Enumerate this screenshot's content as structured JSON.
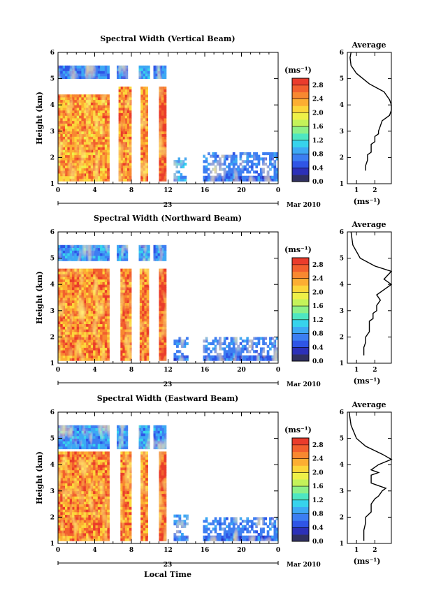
{
  "figure": {
    "xlabel": "Local Time",
    "date_day": "23",
    "date_month": "Mar 2010",
    "ylabel": "Height (km)",
    "avg_title": "Average",
    "avg_xlabel": "(ms⁻¹)",
    "colorbar_unit": "(ms⁻¹)"
  },
  "colorbar": {
    "tick_labels": [
      "0.0",
      "0.4",
      "0.8",
      "1.2",
      "1.6",
      "2.0",
      "2.4",
      "2.8"
    ],
    "tick_values": [
      0.0,
      0.4,
      0.8,
      1.2,
      1.6,
      2.0,
      2.4,
      2.8
    ],
    "range": [
      0.0,
      3.0
    ],
    "colors": [
      "#303060",
      "#2c30b8",
      "#2f55e6",
      "#3c7ef2",
      "#3ea8f4",
      "#37d3ec",
      "#4ee6c2",
      "#8cf08a",
      "#c4f25a",
      "#eef048",
      "#fcd63a",
      "#fcae32",
      "#f88830",
      "#f2602e",
      "#ea3c2c"
    ]
  },
  "chart_data": [
    {
      "type": "heatmap",
      "title": "Spectral Width (Vertical Beam)",
      "x_ticks": [
        "0",
        "4",
        "8",
        "12",
        "16",
        "20",
        "0"
      ],
      "x_tick_values": [
        0,
        4,
        8,
        12,
        16,
        20,
        24
      ],
      "xlim": [
        0,
        24
      ],
      "y_ticks": [
        "1",
        "2",
        "3",
        "4",
        "5",
        "6"
      ],
      "ylim": [
        1,
        6
      ],
      "x_unit": "Local Time (h)",
      "y_unit": "Height (km)",
      "color_unit": "ms⁻¹",
      "value_range": [
        0.0,
        3.0
      ],
      "data_blocks": [
        {
          "t": [
            0,
            5.6
          ],
          "h": [
            5.0,
            5.5
          ],
          "value": 0.7
        },
        {
          "t": [
            0,
            5.6
          ],
          "h": [
            1.1,
            4.4
          ],
          "value": 2.4
        },
        {
          "t": [
            6.4,
            7.6
          ],
          "h": [
            5.0,
            5.5
          ],
          "value": 0.7
        },
        {
          "t": [
            6.6,
            8.0
          ],
          "h": [
            1.1,
            4.7
          ],
          "value": 2.5
        },
        {
          "t": [
            8.8,
            10.0
          ],
          "h": [
            5.0,
            5.5
          ],
          "value": 0.8
        },
        {
          "t": [
            9.0,
            9.8
          ],
          "h": [
            1.1,
            4.7
          ],
          "value": 2.5
        },
        {
          "t": [
            10.4,
            11.8
          ],
          "h": [
            5.0,
            5.5
          ],
          "value": 0.8
        },
        {
          "t": [
            11.0,
            11.8
          ],
          "h": [
            1.1,
            4.7
          ],
          "value": 2.8
        },
        {
          "t": [
            12.6,
            14.0
          ],
          "h": [
            1.1,
            2.0
          ],
          "value": 0.8
        },
        {
          "t": [
            15.8,
            24.0
          ],
          "h": [
            1.1,
            2.2
          ],
          "value": 0.6
        }
      ]
    },
    {
      "type": "line",
      "title": "Average",
      "xlabel": "(ms⁻¹)",
      "x_ticks": [
        "1",
        "2"
      ],
      "x_tick_values": [
        1,
        2
      ],
      "xlim": [
        0.5,
        2.9
      ],
      "y_ticks": [
        "1",
        "2",
        "3",
        "4",
        "5",
        "6"
      ],
      "ylim": [
        1,
        6
      ],
      "x": [
        1.5,
        1.5,
        1.6,
        1.6,
        1.8,
        1.8,
        2.0,
        2.0,
        2.2,
        2.2,
        2.4,
        2.8,
        2.9,
        2.9,
        2.8,
        2.5,
        1.7,
        1.0,
        0.7,
        0.65,
        0.7
      ],
      "y": [
        1.5,
        1.7,
        1.9,
        2.1,
        2.2,
        2.5,
        2.6,
        2.8,
        2.9,
        3.0,
        3.4,
        3.6,
        3.8,
        4.0,
        4.2,
        4.5,
        4.8,
        5.2,
        5.5,
        5.8,
        6.0
      ]
    },
    {
      "type": "heatmap",
      "title": "Spectral Width (Northward Beam)",
      "x_ticks": [
        "0",
        "4",
        "8",
        "12",
        "16",
        "20",
        "0"
      ],
      "x_tick_values": [
        0,
        4,
        8,
        12,
        16,
        20,
        24
      ],
      "xlim": [
        0,
        24
      ],
      "y_ticks": [
        "1",
        "2",
        "3",
        "4",
        "5",
        "6"
      ],
      "ylim": [
        1,
        6
      ],
      "x_unit": "Local Time (h)",
      "y_unit": "Height (km)",
      "color_unit": "ms⁻¹",
      "value_range": [
        0.0,
        3.0
      ],
      "data_blocks": [
        {
          "t": [
            0,
            5.6
          ],
          "h": [
            4.9,
            5.5
          ],
          "value": 0.8
        },
        {
          "t": [
            0,
            5.6
          ],
          "h": [
            1.1,
            4.6
          ],
          "value": 2.5
        },
        {
          "t": [
            6.4,
            7.6
          ],
          "h": [
            4.9,
            5.5
          ],
          "value": 0.8
        },
        {
          "t": [
            6.8,
            8.0
          ],
          "h": [
            1.1,
            4.6
          ],
          "value": 2.6
        },
        {
          "t": [
            8.8,
            10.0
          ],
          "h": [
            4.9,
            5.5
          ],
          "value": 0.8
        },
        {
          "t": [
            8.9,
            9.9
          ],
          "h": [
            1.1,
            4.6
          ],
          "value": 2.6
        },
        {
          "t": [
            10.4,
            11.8
          ],
          "h": [
            4.9,
            5.5
          ],
          "value": 0.8
        },
        {
          "t": [
            11.0,
            11.8
          ],
          "h": [
            1.1,
            4.6
          ],
          "value": 2.8
        },
        {
          "t": [
            12.6,
            14.2
          ],
          "h": [
            1.1,
            2.0
          ],
          "value": 0.6
        },
        {
          "t": [
            15.8,
            24.0
          ],
          "h": [
            1.1,
            2.0
          ],
          "value": 0.6
        }
      ]
    },
    {
      "type": "line",
      "title": "Average",
      "xlabel": "(ms⁻¹)",
      "x_ticks": [
        "1",
        "2"
      ],
      "x_tick_values": [
        1,
        2
      ],
      "xlim": [
        0.5,
        2.9
      ],
      "y_ticks": [
        "1",
        "2",
        "3",
        "4",
        "5",
        "6"
      ],
      "ylim": [
        1,
        6
      ],
      "x": [
        1.4,
        1.4,
        1.5,
        1.5,
        1.7,
        1.7,
        1.9,
        1.9,
        2.1,
        2.1,
        2.3,
        2.1,
        2.5,
        2.9,
        2.5,
        2.9,
        2.0,
        1.2,
        0.8,
        0.7
      ],
      "y": [
        1.3,
        1.6,
        1.8,
        2.0,
        2.2,
        2.6,
        2.7,
        2.9,
        3.0,
        3.2,
        3.4,
        3.6,
        3.8,
        4.0,
        4.2,
        4.5,
        4.7,
        5.0,
        5.5,
        6.0
      ]
    },
    {
      "type": "heatmap",
      "title": "Spectral Width (Eastward Beam)",
      "x_ticks": [
        "0",
        "4",
        "8",
        "12",
        "16",
        "20",
        "0"
      ],
      "x_tick_values": [
        0,
        4,
        8,
        12,
        16,
        20,
        24
      ],
      "xlim": [
        0,
        24
      ],
      "y_ticks": [
        "1",
        "2",
        "3",
        "4",
        "5",
        "6"
      ],
      "ylim": [
        1,
        6
      ],
      "x_unit": "Local Time (h)",
      "y_unit": "Height (km)",
      "color_unit": "ms⁻¹",
      "value_range": [
        0.0,
        3.0
      ],
      "data_blocks": [
        {
          "t": [
            0,
            5.6
          ],
          "h": [
            4.6,
            5.5
          ],
          "value": 0.8
        },
        {
          "t": [
            0,
            5.6
          ],
          "h": [
            1.1,
            4.5
          ],
          "value": 2.5
        },
        {
          "t": [
            6.4,
            7.6
          ],
          "h": [
            4.6,
            5.5
          ],
          "value": 0.8
        },
        {
          "t": [
            6.8,
            8.0
          ],
          "h": [
            1.1,
            4.5
          ],
          "value": 2.5
        },
        {
          "t": [
            8.8,
            10.0
          ],
          "h": [
            4.6,
            5.5
          ],
          "value": 0.8
        },
        {
          "t": [
            9.0,
            9.8
          ],
          "h": [
            1.1,
            4.5
          ],
          "value": 2.5
        },
        {
          "t": [
            10.4,
            11.8
          ],
          "h": [
            4.6,
            5.5
          ],
          "value": 0.8
        },
        {
          "t": [
            11.0,
            11.8
          ],
          "h": [
            1.1,
            4.5
          ],
          "value": 2.8
        },
        {
          "t": [
            12.6,
            14.2
          ],
          "h": [
            1.1,
            2.1
          ],
          "value": 0.7
        },
        {
          "t": [
            15.8,
            24.0
          ],
          "h": [
            1.1,
            2.0
          ],
          "value": 0.6
        }
      ]
    },
    {
      "type": "line",
      "title": "Average",
      "xlabel": "(ms⁻¹)",
      "x_ticks": [
        "1",
        "2"
      ],
      "x_tick_values": [
        1,
        2
      ],
      "xlim": [
        0.5,
        2.9
      ],
      "y_ticks": [
        "1",
        "2",
        "3",
        "4",
        "5",
        "6"
      ],
      "ylim": [
        1,
        6
      ],
      "x": [
        1.4,
        1.4,
        1.5,
        1.5,
        1.8,
        1.8,
        2.0,
        2.2,
        2.4,
        2.6,
        2.2,
        1.8,
        1.8,
        2.2,
        1.8,
        2.2,
        2.9,
        2.4,
        1.5,
        1.0,
        0.7,
        0.6
      ],
      "y": [
        1.1,
        1.5,
        1.8,
        2.0,
        2.2,
        2.5,
        2.7,
        2.8,
        3.0,
        3.1,
        3.2,
        3.3,
        3.6,
        3.7,
        3.8,
        4.0,
        4.2,
        4.4,
        4.7,
        5.0,
        5.5,
        6.0
      ]
    }
  ]
}
